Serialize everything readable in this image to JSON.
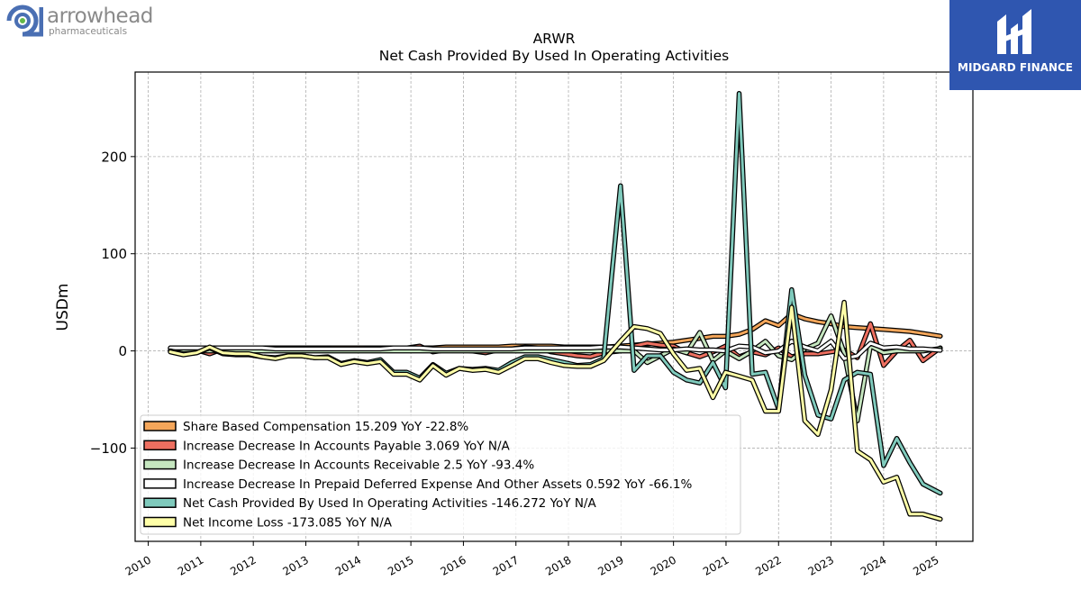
{
  "logos": {
    "left_name": "arrowhead",
    "left_sub": "pharmaceuticals",
    "right_name": "MIDGARD FINANCE"
  },
  "chart_data": {
    "type": "line",
    "title": "ARWR",
    "subtitle": "Net Cash Provided By Used In Operating Activities",
    "xlabel": "",
    "ylabel": "USDm",
    "xlim": [
      2009.75,
      2025.7
    ],
    "ylim": [
      -196,
      287
    ],
    "x_ticks": [
      2010,
      2011,
      2012,
      2013,
      2014,
      2015,
      2016,
      2017,
      2018,
      2019,
      2020,
      2021,
      2022,
      2023,
      2024,
      2025
    ],
    "y_ticks": [
      -100,
      0,
      100,
      200
    ],
    "grid": true,
    "legend_position": "lower-left",
    "x": [
      2010.42,
      2010.67,
      2010.92,
      2011.17,
      2011.42,
      2011.67,
      2011.92,
      2012.17,
      2012.42,
      2012.67,
      2012.92,
      2013.17,
      2013.42,
      2013.67,
      2013.92,
      2014.17,
      2014.42,
      2014.67,
      2014.92,
      2015.17,
      2015.42,
      2015.67,
      2015.92,
      2016.17,
      2016.42,
      2016.67,
      2016.92,
      2017.17,
      2017.42,
      2017.67,
      2017.92,
      2018.17,
      2018.42,
      2018.67,
      2018.99,
      2019.25,
      2019.5,
      2019.75,
      2020.0,
      2020.25,
      2020.5,
      2020.75,
      2020.99,
      2021.25,
      2021.5,
      2021.75,
      2022.0,
      2022.25,
      2022.5,
      2022.75,
      2023.0,
      2023.25,
      2023.5,
      2023.75,
      2024.0,
      2024.25,
      2024.5,
      2024.75,
      2025.08
    ],
    "series": [
      {
        "name": "Share Based Compensation",
        "legend": "Share Based Compensation  15.209 YoY -22.8%",
        "color": "#f4a65a",
        "values": [
          3,
          3,
          3,
          3,
          3,
          3,
          3,
          3,
          3,
          3,
          3,
          3,
          3,
          3,
          3,
          3,
          3,
          3,
          3,
          3,
          3,
          4,
          4,
          4,
          4,
          4,
          5,
          5,
          5,
          5,
          4,
          4,
          4,
          4,
          5,
          6,
          7,
          8,
          9,
          11,
          13,
          15,
          15,
          17,
          22,
          31,
          26,
          38,
          33,
          30,
          28,
          25,
          24,
          23,
          22,
          21,
          20,
          18,
          15.2
        ]
      },
      {
        "name": "Increase Decrease In Accounts Payable",
        "legend": "Increase Decrease In Accounts Payable  3.069 YoY N/A",
        "color": "#ee6f60",
        "values": [
          2,
          1,
          1,
          -3,
          2,
          2,
          2,
          2,
          2,
          2,
          2,
          2,
          2,
          1,
          1,
          2,
          2,
          3,
          3,
          5,
          -1,
          1,
          1,
          0,
          -2,
          1,
          2,
          4,
          3,
          -1,
          -3,
          -5,
          -6,
          -2,
          0,
          5,
          8,
          6,
          5,
          -2,
          -6,
          -1,
          5,
          -6,
          -1,
          -4,
          3,
          -6,
          -3,
          -3,
          -1,
          1,
          -7,
          28,
          -15,
          0,
          11,
          -10,
          3.1
        ]
      },
      {
        "name": "Increase Decrease In Accounts Receivable",
        "legend": "Increase Decrease In Accounts Receivable  2.5 YoY -93.4%",
        "color": "#c5e6bf",
        "values": [
          0,
          0,
          0,
          0,
          0,
          0,
          0,
          0,
          0,
          0,
          0,
          0,
          0,
          0,
          0,
          0,
          0,
          0,
          0,
          0,
          0,
          0,
          0,
          0,
          0,
          0,
          0,
          0,
          0,
          0,
          0,
          0,
          0,
          0,
          0,
          0,
          -12,
          -5,
          2,
          -2,
          19,
          -10,
          0,
          -8,
          0,
          10,
          -5,
          -9,
          2,
          8,
          36,
          -2,
          -72,
          5,
          -2,
          0,
          0,
          0,
          2.5
        ]
      },
      {
        "name": "Increase Decrease In Prepaid Deferred Expense And Other Assets",
        "legend": "Increase Decrease In Prepaid Deferred Expense And Other Assets  0.592 YoY -66.1%",
        "color": "#ffffff",
        "values": [
          3,
          3,
          3,
          3,
          3,
          3,
          3,
          3,
          2,
          2,
          2,
          2,
          2,
          2,
          2,
          2,
          2,
          3,
          3,
          3,
          2,
          2,
          2,
          2,
          2,
          2,
          2,
          3,
          3,
          3,
          3,
          3,
          3,
          4,
          4,
          3,
          2,
          1,
          1,
          2,
          1,
          1,
          0,
          5,
          4,
          -2,
          0,
          10,
          4,
          0,
          10,
          -8,
          -5,
          8,
          3,
          4,
          2,
          2,
          0.6
        ]
      },
      {
        "name": "Net Cash Provided By Used In Operating Activities",
        "legend": "Net Cash Provided By Used In Operating Activities  -146.272 YoY N/A",
        "color": "#7fcabc",
        "values": [
          0,
          -3,
          -2,
          3,
          -3,
          -4,
          -4,
          -6,
          -7,
          -5,
          -5,
          -7,
          -6,
          -13,
          -10,
          -12,
          -9,
          -22,
          -22,
          -28,
          -14,
          -23,
          -18,
          -19,
          -18,
          -20,
          -12,
          -6,
          -6,
          -9,
          -12,
          -15,
          -14,
          -8,
          170,
          -20,
          -5,
          -5,
          -22,
          -30,
          -33,
          -12,
          -38,
          265,
          -24,
          -22,
          -60,
          63,
          -25,
          -66,
          -70,
          -30,
          -22,
          -24,
          -118,
          -90,
          -115,
          -137,
          -146.3
        ]
      },
      {
        "name": "Net Income Loss",
        "legend": "Net Income Loss  -173.085 YoY N/A",
        "color": "#ffffa8",
        "values": [
          -1,
          -4,
          -2,
          4,
          -2,
          -3,
          -3,
          -6,
          -8,
          -5,
          -5,
          -7,
          -7,
          -14,
          -11,
          -13,
          -11,
          -24,
          -24,
          -30,
          -15,
          -25,
          -18,
          -20,
          -19,
          -22,
          -15,
          -8,
          -8,
          -12,
          -15,
          -16,
          -16,
          -10,
          10,
          25,
          23,
          18,
          -3,
          -20,
          -18,
          -48,
          -22,
          -26,
          -30,
          -62,
          -62,
          45,
          -72,
          -86,
          -40,
          50,
          -103,
          -112,
          -135,
          -130,
          -168,
          -168,
          -173.1
        ]
      }
    ]
  }
}
